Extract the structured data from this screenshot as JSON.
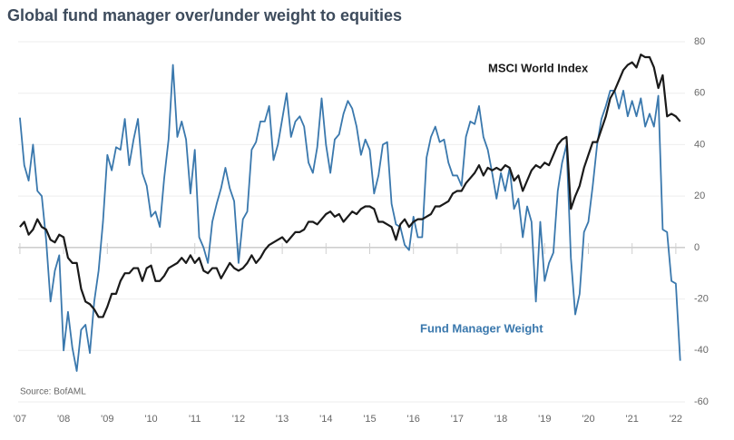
{
  "chart_data": {
    "type": "line",
    "title": "Global fund manager over/under weight to equities",
    "annotations": [
      "MSCI World Index",
      "Fund Manager Weight",
      "Source: BofAML"
    ],
    "x": [
      2007,
      2007.1,
      2007.2,
      2007.3,
      2007.4,
      2007.5,
      2007.6,
      2007.7,
      2007.8,
      2007.9,
      2008,
      2008.1,
      2008.2,
      2008.3,
      2008.4,
      2008.5,
      2008.6,
      2008.7,
      2008.8,
      2008.9,
      2009,
      2009.1,
      2009.2,
      2009.3,
      2009.4,
      2009.5,
      2009.6,
      2009.7,
      2009.8,
      2009.9,
      2010,
      2010.1,
      2010.2,
      2010.3,
      2010.4,
      2010.5,
      2010.6,
      2010.7,
      2010.8,
      2010.9,
      2011,
      2011.1,
      2011.2,
      2011.3,
      2011.4,
      2011.5,
      2011.6,
      2011.7,
      2011.8,
      2011.9,
      2012,
      2012.1,
      2012.2,
      2012.3,
      2012.4,
      2012.5,
      2012.6,
      2012.7,
      2012.8,
      2012.9,
      2013,
      2013.1,
      2013.2,
      2013.3,
      2013.4,
      2013.5,
      2013.6,
      2013.7,
      2013.8,
      2013.9,
      2014,
      2014.1,
      2014.2,
      2014.3,
      2014.4,
      2014.5,
      2014.6,
      2014.7,
      2014.8,
      2014.9,
      2015,
      2015.1,
      2015.2,
      2015.3,
      2015.4,
      2015.5,
      2015.6,
      2015.7,
      2015.8,
      2015.9,
      2016,
      2016.1,
      2016.2,
      2016.3,
      2016.4,
      2016.5,
      2016.6,
      2016.7,
      2016.8,
      2016.9,
      2017,
      2017.1,
      2017.2,
      2017.3,
      2017.4,
      2017.5,
      2017.6,
      2017.7,
      2017.8,
      2017.9,
      2018,
      2018.1,
      2018.2,
      2018.3,
      2018.4,
      2018.5,
      2018.6,
      2018.7,
      2018.8,
      2018.9,
      2019,
      2019.1,
      2019.2,
      2019.3,
      2019.4,
      2019.5,
      2019.6,
      2019.7,
      2019.8,
      2019.9,
      2020,
      2020.1,
      2020.2,
      2020.3,
      2020.4,
      2020.5,
      2020.6,
      2020.7,
      2020.8,
      2020.9,
      2021,
      2021.1,
      2021.2,
      2021.3,
      2021.4,
      2021.5,
      2021.6,
      2021.7,
      2021.8,
      2021.9,
      2022,
      2022.1
    ],
    "series": [
      {
        "name": "Fund Manager Weight",
        "color": "#3a78ad",
        "values": [
          50.5,
          32,
          26,
          40,
          22,
          20,
          3,
          -21,
          -9,
          -3,
          -40,
          -25,
          -39,
          -48,
          -32,
          -30,
          -41,
          -21,
          -9,
          10,
          36,
          30,
          39,
          38,
          50,
          32,
          42,
          50,
          29,
          24,
          12,
          14,
          8,
          27,
          42,
          71,
          43,
          49,
          42,
          21,
          38,
          4,
          0,
          -6,
          10,
          17,
          23,
          31,
          23,
          18,
          -6,
          11,
          14,
          38,
          41,
          49,
          49,
          55,
          34,
          40,
          50,
          60,
          43,
          49,
          51,
          47,
          33,
          29,
          39,
          58,
          40,
          29,
          42,
          44,
          52,
          57,
          54,
          47,
          36,
          42,
          38,
          21,
          28,
          40,
          41,
          17,
          9,
          8,
          1,
          -1,
          12,
          4,
          4,
          35,
          43,
          47,
          41,
          42,
          33,
          28,
          28,
          24,
          43,
          49,
          48,
          55,
          43,
          38,
          29,
          19,
          29,
          22,
          31,
          15,
          19,
          4,
          16,
          10,
          -21,
          10,
          -13,
          -6,
          -2,
          22,
          33,
          40,
          -4,
          -26,
          -18,
          6,
          10,
          24,
          40,
          50,
          55,
          61,
          61,
          54,
          61,
          51,
          57,
          51,
          58,
          47,
          52,
          47,
          59,
          7,
          6,
          -13,
          -14,
          -44
        ]
      },
      {
        "name": "MSCI World Index",
        "color": "#1a1a1a",
        "values": [
          8,
          10,
          5,
          7,
          11,
          8,
          7,
          3,
          2,
          5,
          4,
          -4,
          -6,
          -6,
          -16,
          -21,
          -22,
          -24,
          -27,
          -27,
          -23,
          -18,
          -18,
          -13,
          -10,
          -10,
          -8,
          -8,
          -13,
          -8,
          -7,
          -13,
          -13,
          -11,
          -8,
          -7,
          -6,
          -4,
          -6,
          -3,
          -6,
          -4,
          -9,
          -10,
          -8,
          -8,
          -12,
          -9,
          -6,
          -8,
          -9,
          -8,
          -6,
          -3,
          -6,
          -4,
          -1,
          1,
          2,
          3,
          4,
          2,
          4,
          6,
          6,
          7,
          10,
          10,
          9,
          11,
          13,
          14,
          12,
          13,
          10,
          12,
          14,
          13,
          15,
          16,
          16,
          15,
          10,
          10,
          9,
          8,
          3,
          9,
          11,
          8,
          10,
          11,
          11,
          12,
          13,
          16,
          16,
          17,
          18,
          21,
          22,
          22,
          25,
          27,
          29,
          32,
          28,
          31,
          30,
          31,
          30,
          32,
          31,
          26,
          28,
          22,
          26,
          30,
          32,
          31,
          33,
          32,
          36,
          40,
          42,
          43,
          15,
          20,
          24,
          31,
          36,
          41,
          41,
          46,
          51,
          58,
          61,
          65,
          69,
          71,
          72,
          70,
          75,
          74,
          74,
          70,
          62,
          67,
          51,
          52,
          51,
          49
        ]
      }
    ],
    "xlim": [
      2006.96,
      2022.21
    ],
    "xticks": [
      {
        "value": 2007,
        "label": "'07"
      },
      {
        "value": 2008,
        "label": "'08"
      },
      {
        "value": 2009,
        "label": "'09"
      },
      {
        "value": 2010,
        "label": "'10"
      },
      {
        "value": 2011,
        "label": "'11"
      },
      {
        "value": 2012,
        "label": "'12"
      },
      {
        "value": 2013,
        "label": "'13"
      },
      {
        "value": 2014,
        "label": "'14"
      },
      {
        "value": 2015,
        "label": "'15"
      },
      {
        "value": 2016,
        "label": "'16"
      },
      {
        "value": 2017,
        "label": "'17"
      },
      {
        "value": 2018,
        "label": "'18"
      },
      {
        "value": 2019,
        "label": "'19"
      },
      {
        "value": 2020,
        "label": "'20"
      },
      {
        "value": 2021,
        "label": "'21"
      },
      {
        "value": 2022,
        "label": "'22"
      }
    ],
    "ylim": [
      -63,
      83
    ],
    "yticks": [
      -60,
      -40,
      -20,
      0,
      20,
      40,
      60,
      80
    ],
    "grid": true
  }
}
